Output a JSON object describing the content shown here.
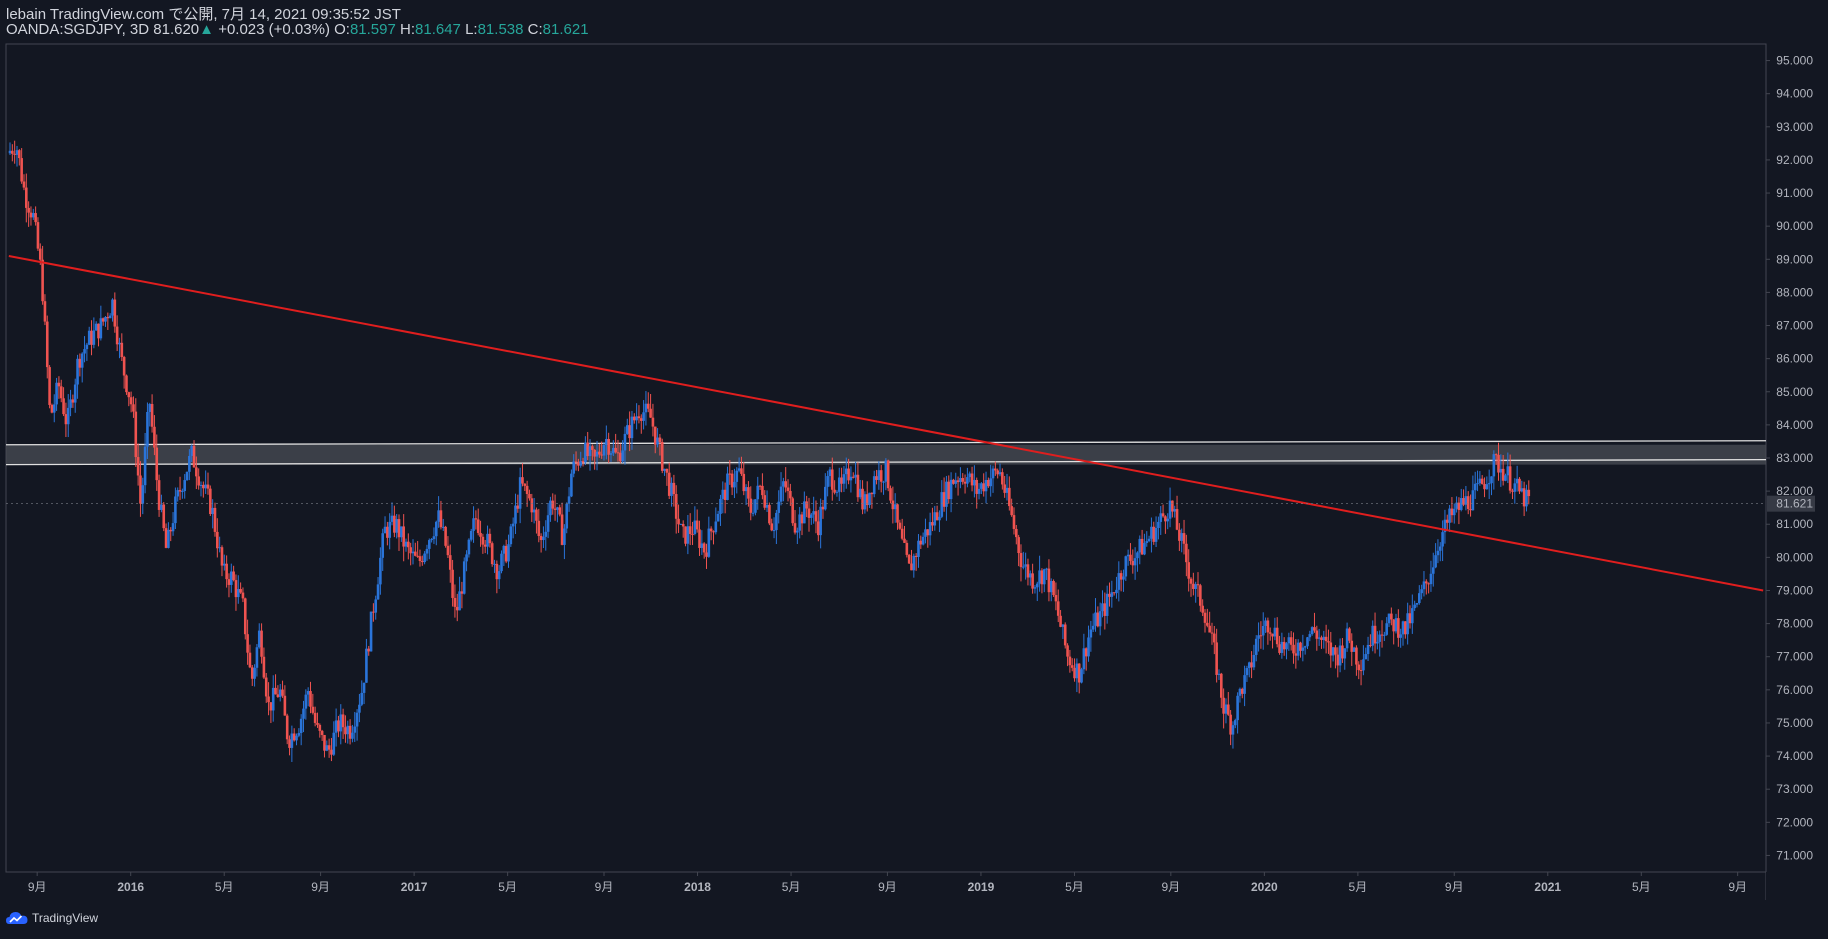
{
  "header": {
    "published": "lebain TradingView.com で公開, 7月 14, 2021 09:35:52 JST",
    "symbol_info": "OANDA:SGDJPY, 3D 81.620",
    "change": "+0.023 (+0.03%)",
    "o_label": "O:",
    "o_value": "81.597",
    "h_label": "H:",
    "h_value": "81.647",
    "l_label": "L:",
    "l_value": "81.538",
    "c_label": "C:",
    "c_value": "81.621"
  },
  "brand": {
    "name": "TradingView",
    "icon": "tradingview-cloud-icon"
  },
  "colors": {
    "background": "#131722",
    "up": "#2a74d9",
    "down": "#ef5350",
    "trendline": "#e01e1e",
    "zone_fill": "#4a4d55",
    "zone_edge": "#e0e0e0",
    "axis_text": "#b2b5be",
    "frame": "#434651"
  },
  "chart_data": {
    "type": "candlestick",
    "symbol": "OANDA:SGDJPY",
    "timeframe": "3D",
    "last_price": "81.621",
    "ylim": [
      70.5,
      95.5
    ],
    "y_ticks": [
      "95.000",
      "94.000",
      "93.000",
      "92.000",
      "91.000",
      "90.000",
      "89.000",
      "88.000",
      "87.000",
      "86.000",
      "85.000",
      "84.000",
      "83.000",
      "82.000",
      "81.000",
      "80.000",
      "79.000",
      "78.000",
      "77.000",
      "76.000",
      "75.000",
      "74.000",
      "73.000",
      "72.000",
      "71.000"
    ],
    "x_range": [
      2015.56,
      2021.77
    ],
    "x_ticks": [
      {
        "t": 2015.67,
        "label": "9月",
        "bold": false
      },
      {
        "t": 2016.0,
        "label": "2016",
        "bold": true
      },
      {
        "t": 2016.33,
        "label": "5月",
        "bold": false
      },
      {
        "t": 2016.67,
        "label": "9月",
        "bold": false
      },
      {
        "t": 2017.0,
        "label": "2017",
        "bold": true
      },
      {
        "t": 2017.33,
        "label": "5月",
        "bold": false
      },
      {
        "t": 2017.67,
        "label": "9月",
        "bold": false
      },
      {
        "t": 2018.0,
        "label": "2018",
        "bold": true
      },
      {
        "t": 2018.33,
        "label": "5月",
        "bold": false
      },
      {
        "t": 2018.67,
        "label": "9月",
        "bold": false
      },
      {
        "t": 2019.0,
        "label": "2019",
        "bold": true
      },
      {
        "t": 2019.33,
        "label": "5月",
        "bold": false
      },
      {
        "t": 2019.67,
        "label": "9月",
        "bold": false
      },
      {
        "t": 2020.0,
        "label": "2020",
        "bold": true
      },
      {
        "t": 2020.33,
        "label": "5月",
        "bold": false
      },
      {
        "t": 2020.67,
        "label": "9月",
        "bold": false
      },
      {
        "t": 2021.0,
        "label": "2021",
        "bold": true
      },
      {
        "t": 2021.33,
        "label": "5月",
        "bold": false
      },
      {
        "t": 2021.67,
        "label": "9月",
        "bold": false
      }
    ],
    "price_path": [
      [
        2015.57,
        92.2
      ],
      [
        2015.6,
        92.5
      ],
      [
        2015.63,
        91.0
      ],
      [
        2015.66,
        90.3
      ],
      [
        2015.69,
        88.5
      ],
      [
        2015.72,
        84.2
      ],
      [
        2015.75,
        85.2
      ],
      [
        2015.78,
        84.0
      ],
      [
        2015.82,
        86.0
      ],
      [
        2015.86,
        86.6
      ],
      [
        2015.9,
        87.0
      ],
      [
        2015.94,
        87.7
      ],
      [
        2015.97,
        86.0
      ],
      [
        2016.01,
        84.5
      ],
      [
        2016.04,
        81.5
      ],
      [
        2016.07,
        84.8
      ],
      [
        2016.1,
        82.0
      ],
      [
        2016.13,
        80.2
      ],
      [
        2016.16,
        81.5
      ],
      [
        2016.19,
        82.4
      ],
      [
        2016.22,
        83.1
      ],
      [
        2016.26,
        82.1
      ],
      [
        2016.29,
        81.5
      ],
      [
        2016.33,
        79.5
      ],
      [
        2016.36,
        79.4
      ],
      [
        2016.4,
        78.5
      ],
      [
        2016.43,
        76.2
      ],
      [
        2016.46,
        77.8
      ],
      [
        2016.49,
        75.5
      ],
      [
        2016.53,
        76.0
      ],
      [
        2016.56,
        74.5
      ],
      [
        2016.6,
        75.0
      ],
      [
        2016.63,
        76.0
      ],
      [
        2016.66,
        74.8
      ],
      [
        2016.7,
        74.1
      ],
      [
        2016.74,
        75.0
      ],
      [
        2016.78,
        74.8
      ],
      [
        2016.82,
        76.0
      ],
      [
        2016.86,
        78.5
      ],
      [
        2016.9,
        80.8
      ],
      [
        2016.94,
        81.0
      ],
      [
        2016.98,
        80.2
      ],
      [
        2017.02,
        79.8
      ],
      [
        2017.05,
        80.5
      ],
      [
        2017.09,
        81.2
      ],
      [
        2017.12,
        80.2
      ],
      [
        2017.15,
        78.2
      ],
      [
        2017.18,
        79.5
      ],
      [
        2017.22,
        81.2
      ],
      [
        2017.26,
        80.5
      ],
      [
        2017.3,
        79.6
      ],
      [
        2017.34,
        80.4
      ],
      [
        2017.38,
        82.2
      ],
      [
        2017.42,
        81.6
      ],
      [
        2017.45,
        80.4
      ],
      [
        2017.49,
        81.8
      ],
      [
        2017.53,
        80.6
      ],
      [
        2017.56,
        82.6
      ],
      [
        2017.6,
        83.2
      ],
      [
        2017.64,
        82.9
      ],
      [
        2017.68,
        83.6
      ],
      [
        2017.72,
        83.0
      ],
      [
        2017.76,
        83.8
      ],
      [
        2017.8,
        84.5
      ],
      [
        2017.84,
        84.2
      ],
      [
        2017.87,
        83.2
      ],
      [
        2017.91,
        82.0
      ],
      [
        2017.95,
        80.6
      ],
      [
        2017.99,
        80.9
      ],
      [
        2018.03,
        80.2
      ],
      [
        2018.07,
        81.3
      ],
      [
        2018.11,
        82.2
      ],
      [
        2018.15,
        82.6
      ],
      [
        2018.19,
        81.4
      ],
      [
        2018.23,
        82.2
      ],
      [
        2018.27,
        80.9
      ],
      [
        2018.31,
        82.3
      ],
      [
        2018.35,
        81.0
      ],
      [
        2018.39,
        81.5
      ],
      [
        2018.43,
        81.0
      ],
      [
        2018.47,
        82.5
      ],
      [
        2018.51,
        82.0
      ],
      [
        2018.55,
        82.8
      ],
      [
        2018.59,
        81.5
      ],
      [
        2018.63,
        82.5
      ],
      [
        2018.67,
        82.6
      ],
      [
        2018.71,
        80.9
      ],
      [
        2018.75,
        79.6
      ],
      [
        2018.79,
        80.5
      ],
      [
        2018.83,
        81.0
      ],
      [
        2018.87,
        81.8
      ],
      [
        2018.91,
        82.4
      ],
      [
        2018.95,
        82.5
      ],
      [
        2018.99,
        82.0
      ],
      [
        2019.03,
        82.4
      ],
      [
        2019.07,
        82.6
      ],
      [
        2019.11,
        81.3
      ],
      [
        2019.15,
        79.8
      ],
      [
        2019.19,
        79.3
      ],
      [
        2019.23,
        79.6
      ],
      [
        2019.27,
        78.5
      ],
      [
        2019.31,
        77.0
      ],
      [
        2019.35,
        76.5
      ],
      [
        2019.39,
        77.8
      ],
      [
        2019.43,
        78.3
      ],
      [
        2019.47,
        79.0
      ],
      [
        2019.51,
        79.8
      ],
      [
        2019.55,
        80.1
      ],
      [
        2019.59,
        80.5
      ],
      [
        2019.63,
        81.0
      ],
      [
        2019.67,
        81.6
      ],
      [
        2019.71,
        80.5
      ],
      [
        2019.75,
        79.2
      ],
      [
        2019.79,
        78.5
      ],
      [
        2019.83,
        77.0
      ],
      [
        2019.86,
        75.5
      ],
      [
        2019.89,
        74.9
      ],
      [
        2019.92,
        76.0
      ],
      [
        2019.95,
        76.5
      ],
      [
        2019.98,
        77.6
      ],
      [
        2020.02,
        78.1
      ],
      [
        2020.06,
        77.4
      ],
      [
        2020.1,
        77.2
      ],
      [
        2020.14,
        77.5
      ],
      [
        2020.18,
        77.8
      ],
      [
        2020.22,
        77.3
      ],
      [
        2020.26,
        77.0
      ],
      [
        2020.3,
        77.6
      ],
      [
        2020.34,
        76.8
      ],
      [
        2020.38,
        77.6
      ],
      [
        2020.42,
        77.9
      ],
      [
        2020.46,
        78.0
      ],
      [
        2020.5,
        77.8
      ],
      [
        2020.54,
        78.5
      ],
      [
        2020.58,
        79.3
      ],
      [
        2020.62,
        80.5
      ],
      [
        2020.66,
        81.2
      ],
      [
        2020.7,
        81.6
      ],
      [
        2020.74,
        81.8
      ],
      [
        2020.78,
        82.3
      ],
      [
        2020.82,
        82.9
      ],
      [
        2020.86,
        82.5
      ],
      [
        2020.9,
        82.0
      ],
      [
        2020.93,
        81.7
      ]
    ],
    "trendline": {
      "x1": 2015.57,
      "y1": 89.1,
      "x2": 2021.76,
      "y2": 79.0
    },
    "resistance_zone": {
      "from": 82.8,
      "to": 83.4
    },
    "annotations": []
  }
}
